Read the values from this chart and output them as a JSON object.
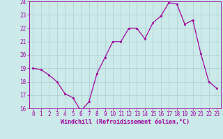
{
  "x": [
    0,
    1,
    2,
    3,
    4,
    5,
    6,
    7,
    8,
    9,
    10,
    11,
    12,
    13,
    14,
    15,
    16,
    17,
    18,
    19,
    20,
    21,
    22,
    23
  ],
  "y": [
    19.0,
    18.9,
    18.5,
    18.0,
    17.1,
    16.8,
    15.8,
    16.5,
    18.6,
    19.8,
    21.0,
    21.0,
    22.0,
    22.0,
    21.2,
    22.4,
    22.9,
    23.9,
    23.8,
    22.3,
    22.6,
    20.1,
    18.0,
    17.5
  ],
  "line_color": "#990099",
  "marker": "s",
  "marker_size": 2.0,
  "xlabel": "Windchill (Refroidissement éolien,°C)",
  "ylim": [
    16,
    24
  ],
  "xlim": [
    -0.5,
    23.5
  ],
  "yticks": [
    16,
    17,
    18,
    19,
    20,
    21,
    22,
    23,
    24
  ],
  "xticks": [
    0,
    1,
    2,
    3,
    4,
    5,
    6,
    7,
    8,
    9,
    10,
    11,
    12,
    13,
    14,
    15,
    16,
    17,
    18,
    19,
    20,
    21,
    22,
    23
  ],
  "xtick_labels": [
    "0",
    "1",
    "2",
    "3",
    "4",
    "5",
    "6",
    "7",
    "8",
    "9",
    "10",
    "11",
    "12",
    "13",
    "14",
    "15",
    "16",
    "17",
    "18",
    "19",
    "20",
    "21",
    "22",
    "23"
  ],
  "grid_color": "#aacece",
  "bg_color": "#cceaea",
  "line_color_hex": "#990099",
  "tick_color": "#990099",
  "label_color": "#990099",
  "linewidth": 0.9,
  "font_size": 5.5,
  "xlabel_font_size": 6.0
}
